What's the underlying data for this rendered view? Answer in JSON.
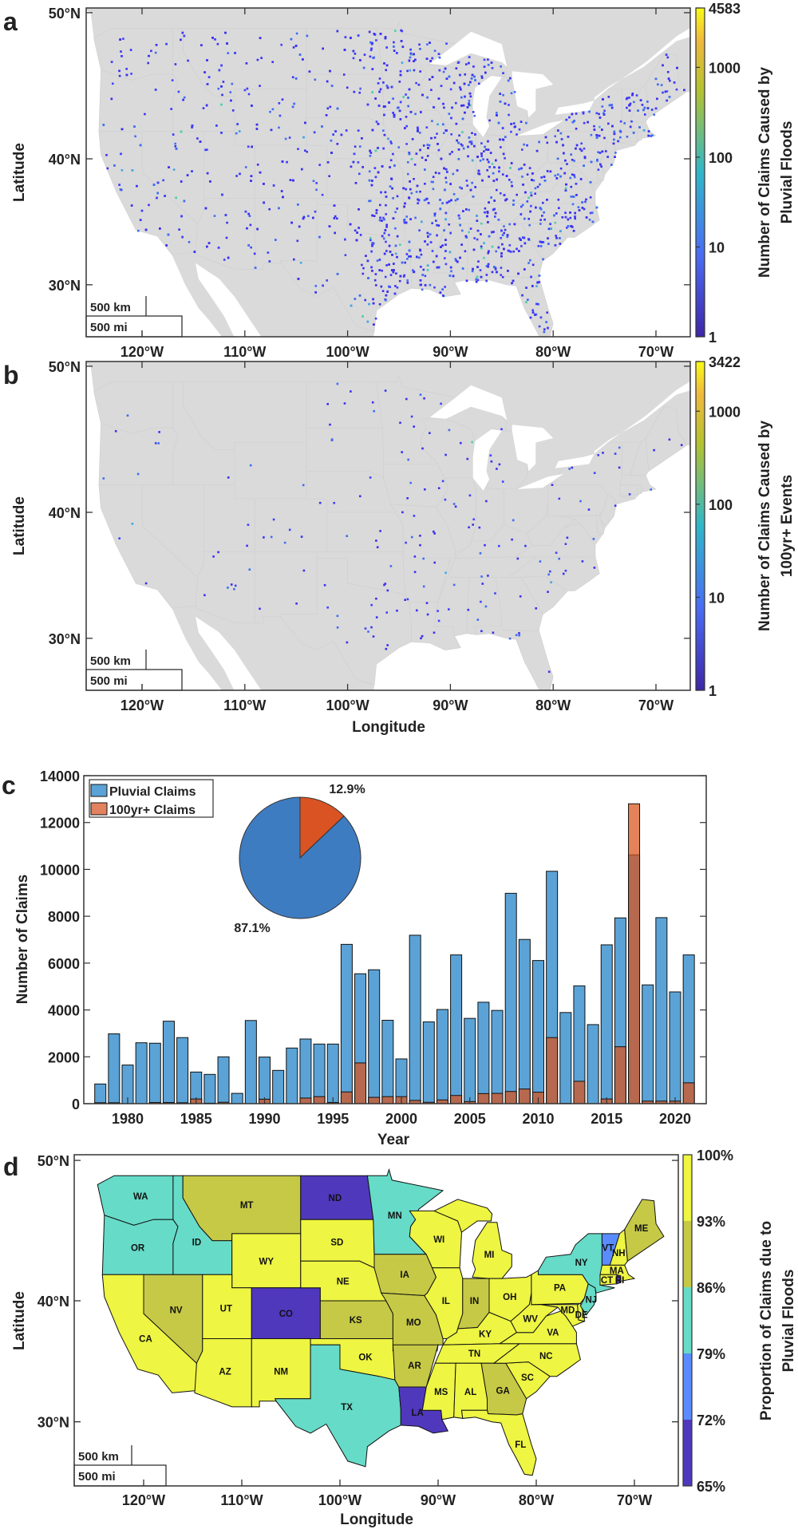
{
  "panel_letters": {
    "a": "a",
    "b": "b",
    "c": "c",
    "d": "d"
  },
  "map_axes": {
    "xlabel": "Longitude",
    "ylabel": "Latitude",
    "lon_ticks": [
      "120°W",
      "110°W",
      "100°W",
      "90°W",
      "80°W",
      "70°W"
    ],
    "lat_ticks": [
      "30°N",
      "40°N",
      "50°N"
    ]
  },
  "scale_bar": {
    "km": "500 km",
    "mi": "500 mi"
  },
  "map_a": {
    "colorbar_title": [
      "Number of Claims Caused by",
      "Pluvial Floods"
    ],
    "colorbar_ticks": [
      "1",
      "10",
      "100",
      "1000",
      "4583"
    ],
    "colorbar_scale": "log",
    "colorbar_range": [
      1,
      4583
    ]
  },
  "map_b": {
    "colorbar_title": [
      "Number of Claims Caused by",
      "100yr+ Events"
    ],
    "colorbar_ticks": [
      "1",
      "10",
      "100",
      "1000",
      "3422"
    ],
    "colorbar_scale": "log",
    "colorbar_range": [
      1,
      3422
    ]
  },
  "map_d": {
    "colorbar_title": [
      "Proportion of Claims due to",
      "Pluvial Floods"
    ],
    "colorbar_ticks": [
      "65%",
      "72%",
      "79%",
      "86%",
      "93%",
      "100%"
    ],
    "bin_colors": [
      "#5038bd",
      "#5a8cff",
      "#66dbc8",
      "#c6c946",
      "#eef542"
    ],
    "states": [
      {
        "code": "WA",
        "bin": 2
      },
      {
        "code": "OR",
        "bin": 2
      },
      {
        "code": "CA",
        "bin": 4
      },
      {
        "code": "ID",
        "bin": 2
      },
      {
        "code": "NV",
        "bin": 3
      },
      {
        "code": "MT",
        "bin": 3
      },
      {
        "code": "WY",
        "bin": 4
      },
      {
        "code": "UT",
        "bin": 4
      },
      {
        "code": "AZ",
        "bin": 4
      },
      {
        "code": "CO",
        "bin": 0
      },
      {
        "code": "NM",
        "bin": 4
      },
      {
        "code": "ND",
        "bin": 0
      },
      {
        "code": "SD",
        "bin": 4
      },
      {
        "code": "NE",
        "bin": 4
      },
      {
        "code": "KS",
        "bin": 3
      },
      {
        "code": "OK",
        "bin": 4
      },
      {
        "code": "TX",
        "bin": 2
      },
      {
        "code": "MN",
        "bin": 2
      },
      {
        "code": "IA",
        "bin": 3
      },
      {
        "code": "MO",
        "bin": 3
      },
      {
        "code": "AR",
        "bin": 3
      },
      {
        "code": "LA",
        "bin": 0
      },
      {
        "code": "WI",
        "bin": 4
      },
      {
        "code": "IL",
        "bin": 4
      },
      {
        "code": "MI",
        "bin": 4
      },
      {
        "code": "IN",
        "bin": 3
      },
      {
        "code": "OH",
        "bin": 4
      },
      {
        "code": "KY",
        "bin": 4
      },
      {
        "code": "TN",
        "bin": 4
      },
      {
        "code": "MS",
        "bin": 4
      },
      {
        "code": "AL",
        "bin": 4
      },
      {
        "code": "GA",
        "bin": 3
      },
      {
        "code": "FL",
        "bin": 4
      },
      {
        "code": "SC",
        "bin": 4
      },
      {
        "code": "NC",
        "bin": 4
      },
      {
        "code": "VA",
        "bin": 4
      },
      {
        "code": "WV",
        "bin": 4
      },
      {
        "code": "MD",
        "bin": 4
      },
      {
        "code": "DE",
        "bin": 4
      },
      {
        "code": "PA",
        "bin": 4
      },
      {
        "code": "NJ",
        "bin": 2
      },
      {
        "code": "NY",
        "bin": 2
      },
      {
        "code": "VT",
        "bin": 1
      },
      {
        "code": "NH",
        "bin": 4
      },
      {
        "code": "ME",
        "bin": 3
      },
      {
        "code": "MA",
        "bin": 4
      },
      {
        "code": "CT",
        "bin": 4
      },
      {
        "code": "RI",
        "bin": 0
      }
    ]
  },
  "chart_data": {
    "type": "bar",
    "xlabel": "Year",
    "ylabel": "Number of Claims",
    "ylim": [
      0,
      14000
    ],
    "yticks": [
      "0",
      "2000",
      "4000",
      "6000",
      "8000",
      "10000",
      "12000",
      "14000"
    ],
    "xticks": [
      "1980",
      "1985",
      "1990",
      "1995",
      "2000",
      "2005",
      "2010",
      "2015",
      "2020"
    ],
    "legend_position": "top-left",
    "years": [
      1978,
      1979,
      1980,
      1981,
      1982,
      1983,
      1984,
      1985,
      1986,
      1987,
      1988,
      1989,
      1990,
      1991,
      1992,
      1993,
      1994,
      1995,
      1996,
      1997,
      1998,
      1999,
      2000,
      2001,
      2002,
      2003,
      2004,
      2005,
      2006,
      2007,
      2008,
      2009,
      2010,
      2011,
      2012,
      2013,
      2014,
      2015,
      2016,
      2017,
      2018,
      2019,
      2020,
      2021
    ],
    "series": [
      {
        "name": "Pluvial Claims",
        "color": "#5ba3d6",
        "values": [
          840,
          2980,
          1650,
          2600,
          2580,
          3520,
          2820,
          1350,
          1250,
          2000,
          440,
          3550,
          1990,
          1420,
          2375,
          2760,
          2545,
          2545,
          6800,
          5545,
          5715,
          3560,
          1910,
          7190,
          3490,
          4020,
          6350,
          3640,
          4330,
          3980,
          8980,
          7010,
          6110,
          9920,
          3890,
          5030,
          3375,
          6780,
          7930,
          10620,
          5070,
          7940,
          4770,
          6350
        ]
      },
      {
        "name": "100yr+ Claims",
        "color": "#d95319",
        "values": [
          40,
          40,
          0,
          0,
          50,
          50,
          40,
          200,
          20,
          60,
          0,
          0,
          190,
          0,
          0,
          240,
          300,
          50,
          500,
          1740,
          270,
          300,
          300,
          140,
          60,
          160,
          350,
          90,
          430,
          440,
          520,
          625,
          490,
          2820,
          10,
          955,
          0,
          200,
          2430,
          12800,
          110,
          110,
          110,
          890
        ]
      }
    ],
    "pie": {
      "type": "pie",
      "slices": [
        {
          "label": "87.1%",
          "value": 87.1,
          "color": "#3e7cc2"
        },
        {
          "label": "12.9%",
          "value": 12.9,
          "color": "#d95323"
        }
      ]
    }
  }
}
